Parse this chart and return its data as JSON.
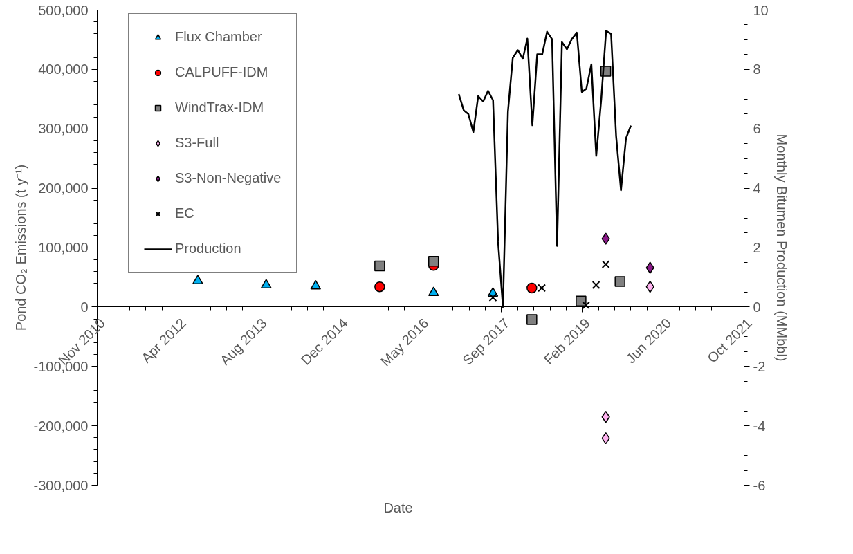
{
  "chart_data": {
    "type": "scatter",
    "xlabel": "Date",
    "ylabel": "Pond CO₂ Emissions (t y⁻¹)",
    "y2label": "Monthly Bitumen Production (MMbbl)",
    "xlim": [
      "2010-11-18",
      "2021-10-31"
    ],
    "xticks": [
      {
        "value": "2010-11-18",
        "label": "Nov 2010"
      },
      {
        "value": "2012-04-01",
        "label": "Apr 2012"
      },
      {
        "value": "2013-08-14",
        "label": "Aug 2013"
      },
      {
        "value": "2014-12-27",
        "label": "Dec 2014"
      },
      {
        "value": "2016-05-10",
        "label": "May 2016"
      },
      {
        "value": "2017-09-22",
        "label": "Sep 2017"
      },
      {
        "value": "2019-02-03",
        "label": "Feb 2019"
      },
      {
        "value": "2020-06-18",
        "label": "Jun 2020"
      },
      {
        "value": "2021-10-31",
        "label": "Oct 2021"
      }
    ],
    "ylim": [
      -300000,
      500000
    ],
    "yticks": [
      {
        "value": -300000,
        "label": "-300,000"
      },
      {
        "value": -200000,
        "label": "-200,000"
      },
      {
        "value": -100000,
        "label": "-100,000"
      },
      {
        "value": 0,
        "label": "0"
      },
      {
        "value": 100000,
        "label": "100,000"
      },
      {
        "value": 200000,
        "label": "200,000"
      },
      {
        "value": 300000,
        "label": "300,000"
      },
      {
        "value": 400000,
        "label": "400,000"
      },
      {
        "value": 500000,
        "label": "500,000"
      }
    ],
    "y2lim": [
      -6,
      10
    ],
    "y2ticks": [
      -6,
      -4,
      -2,
      0,
      2,
      4,
      6,
      8,
      10
    ],
    "grid": false,
    "legend": "top left",
    "series": [
      {
        "name": "Flux Chamber",
        "marker": "triangle",
        "color": "#00b0f0",
        "x": [
          "2012-08-01",
          "2013-09-28",
          "2014-07-31",
          "2016-07-29",
          "2017-07-31"
        ],
        "values": [
          44000,
          37000,
          35000,
          24000,
          23000
        ]
      },
      {
        "name": "CALPUFF-IDM",
        "marker": "circle",
        "color": "#ff0000",
        "x": [
          "2015-08-31",
          "2016-07-29",
          "2018-03-29"
        ],
        "values": [
          34000,
          70000,
          32000
        ]
      },
      {
        "name": "WindTrax-IDM",
        "marker": "square",
        "color": "#808080",
        "x": [
          "2015-08-31",
          "2016-07-29",
          "2018-03-29",
          "2019-01-27",
          "2019-06-29",
          "2019-09-25"
        ],
        "values": [
          69000,
          77000,
          -21000,
          10000,
          397000,
          43000
        ]
      },
      {
        "name": "S3-Full",
        "marker": "diamond",
        "color": "#ffb3f0",
        "x": [
          "2019-06-29",
          "2019-06-29",
          "2020-03-29"
        ],
        "values": [
          -185000,
          -221000,
          34000
        ]
      },
      {
        "name": "S3-Non-Negative",
        "marker": "diamond",
        "color": "#8b1a89",
        "x": [
          "2019-06-29",
          "2020-03-29"
        ],
        "values": [
          115000,
          66000
        ]
      },
      {
        "name": "EC",
        "marker": "cross",
        "color": "#000000",
        "x": [
          "2017-07-31",
          "2018-05-29",
          "2019-02-27",
          "2019-04-30",
          "2019-06-29"
        ],
        "values": [
          16000,
          32000,
          3000,
          37000,
          72000
        ]
      },
      {
        "name": "Production",
        "type": "line",
        "axis": "y2",
        "marker": "none",
        "line_style": "solid",
        "color": "#000000",
        "x": [
          "2017-01",
          "2017-02",
          "2017-03",
          "2017-04",
          "2017-05",
          "2017-06",
          "2017-07",
          "2017-08",
          "2017-09",
          "2017-10",
          "2017-11",
          "2017-12",
          "2018-01",
          "2018-02",
          "2018-03",
          "2018-04",
          "2018-05",
          "2018-06",
          "2018-07",
          "2018-08",
          "2018-09",
          "2018-10",
          "2018-11",
          "2018-12",
          "2019-01",
          "2019-02",
          "2019-03",
          "2019-04",
          "2019-05",
          "2019-06",
          "2019-07",
          "2019-08",
          "2019-09",
          "2019-10",
          "2019-11",
          "2019-12"
        ],
        "values": [
          7.17,
          6.62,
          6.5,
          5.89,
          7.1,
          6.92,
          7.28,
          6.96,
          2.2,
          0,
          6.58,
          8.39,
          8.65,
          8.36,
          9.04,
          6.12,
          8.51,
          8.51,
          9.27,
          9.02,
          2.06,
          8.92,
          8.68,
          9.02,
          9.24,
          7.24,
          7.35,
          8.17,
          5.09,
          7.0,
          9.3,
          9.2,
          5.75,
          3.93,
          5.68,
          6.11
        ]
      }
    ]
  }
}
